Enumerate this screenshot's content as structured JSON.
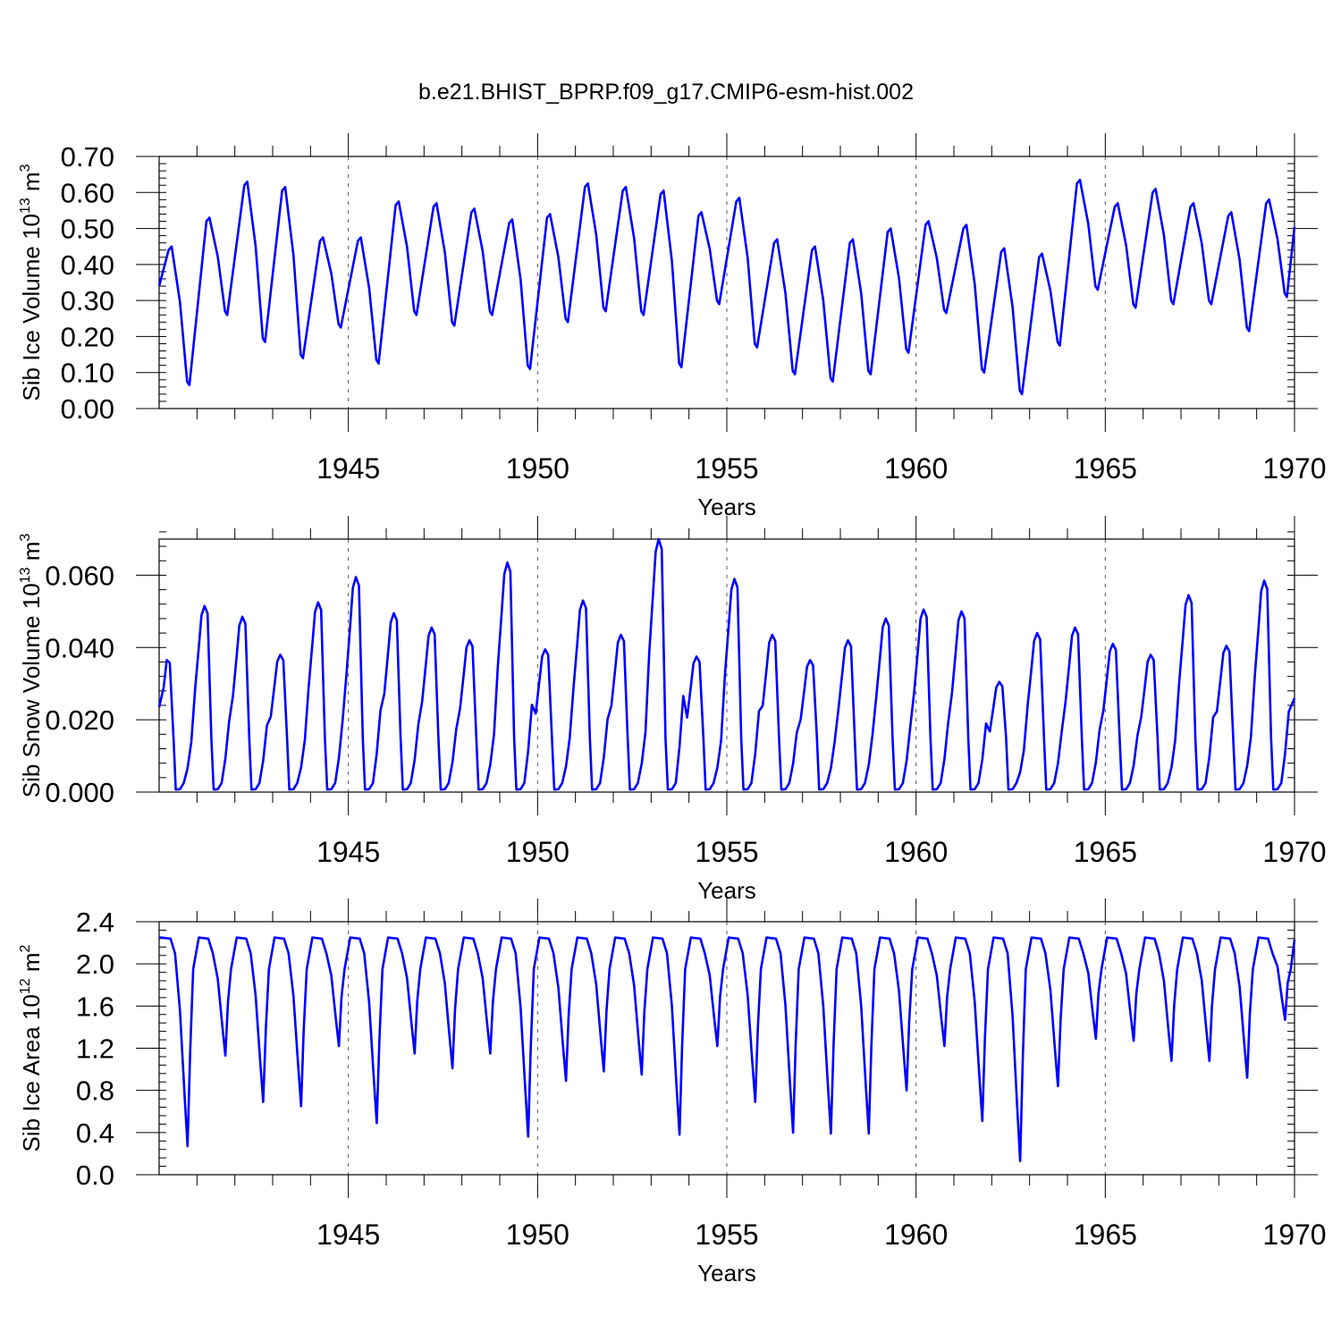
{
  "title": "b.e21.BHIST_BPRP.f09_g17.CMIP6-esm-hist.002",
  "line_color": "#0000ff",
  "chart_data": [
    {
      "type": "line",
      "title": "b.e21.BHIST_BPRP.f09_g17.CMIP6-esm-hist.002",
      "ylabel_main": "Sib Ice Volume 10",
      "ylabel_exp": "13",
      "ylabel_unit": " m",
      "ylabel_unit_exp": "3",
      "xlabel": "Years",
      "xlim": [
        1940.0,
        1970.0
      ],
      "ylim": [
        0.0,
        0.7
      ],
      "xticks": [
        1945,
        1950,
        1955,
        1960,
        1965,
        1970
      ],
      "xtick_labels": [
        "1945",
        "1950",
        "1955",
        "1960",
        "1965",
        "1970"
      ],
      "yticks": [
        0.0,
        0.1,
        0.2,
        0.3,
        0.4,
        0.5,
        0.6,
        0.7
      ],
      "ytick_labels": [
        "0.00",
        "0.10",
        "0.20",
        "0.30",
        "0.40",
        "0.50",
        "0.60",
        "0.70"
      ],
      "yminor_step": 0.02,
      "minima": [
        0.065,
        0.26,
        0.185,
        0.14,
        0.225,
        0.125,
        0.26,
        0.23,
        0.26,
        0.11,
        0.24,
        0.27,
        0.26,
        0.115,
        0.29,
        0.17,
        0.095,
        0.075,
        0.095,
        0.155,
        0.265,
        0.1,
        0.04,
        0.175,
        0.33,
        0.28,
        0.29,
        0.29,
        0.215,
        0.31
      ],
      "maxima": [
        0.45,
        0.53,
        0.63,
        0.615,
        0.475,
        0.475,
        0.575,
        0.57,
        0.555,
        0.525,
        0.54,
        0.625,
        0.615,
        0.605,
        0.545,
        0.585,
        0.47,
        0.45,
        0.47,
        0.5,
        0.52,
        0.51,
        0.445,
        0.43,
        0.635,
        0.57,
        0.61,
        0.57,
        0.545,
        0.58
      ],
      "start_value": 0.34,
      "end_value": 0.505,
      "shape": "ice"
    },
    {
      "type": "line",
      "ylabel_main": "Sib Snow Volume 10",
      "ylabel_exp": "13",
      "ylabel_unit": " m",
      "ylabel_unit_exp": "3",
      "xlabel": "Years",
      "xlim": [
        1940.0,
        1970.0
      ],
      "ylim": [
        0.0,
        0.07
      ],
      "xticks": [
        1945,
        1950,
        1955,
        1960,
        1965,
        1970
      ],
      "xtick_labels": [
        "1945",
        "1950",
        "1955",
        "1960",
        "1965",
        "1970"
      ],
      "yticks": [
        0.0,
        0.02,
        0.04,
        0.06
      ],
      "ytick_labels": [
        "0.000",
        "0.020",
        "0.040",
        "0.060"
      ],
      "yminor_step": 0.004,
      "maxima": [
        0.0365,
        0.0515,
        0.0485,
        0.038,
        0.0525,
        0.0595,
        0.0495,
        0.0455,
        0.042,
        0.0635,
        0.0395,
        0.053,
        0.0435,
        0.07,
        0.0375,
        0.059,
        0.0435,
        0.0365,
        0.042,
        0.048,
        0.0505,
        0.05,
        0.0305,
        0.044,
        0.0455,
        0.041,
        0.038,
        0.0545,
        0.0405,
        0.0585
      ],
      "start_value": 0.0235,
      "end_value": 0.026,
      "shape": "snow"
    },
    {
      "type": "line",
      "ylabel_main": "Sib Ice Area 10",
      "ylabel_exp": "12",
      "ylabel_unit": " m",
      "ylabel_unit_exp": "2",
      "xlabel": "Years",
      "xlim": [
        1940.0,
        1970.0
      ],
      "ylim": [
        0.0,
        2.4
      ],
      "xticks": [
        1945,
        1950,
        1955,
        1960,
        1965,
        1970
      ],
      "xtick_labels": [
        "1945",
        "1950",
        "1955",
        "1960",
        "1965",
        "1970"
      ],
      "yticks": [
        0.0,
        0.4,
        0.8,
        1.2,
        1.6,
        2.0,
        2.4
      ],
      "ytick_labels": [
        "0.0",
        "0.4",
        "0.8",
        "1.2",
        "1.6",
        "2.0",
        "2.4"
      ],
      "yminor_step": 0.08,
      "plateau": 2.25,
      "minima": [
        0.27,
        1.13,
        0.69,
        0.65,
        1.22,
        0.49,
        1.15,
        1.01,
        1.15,
        0.36,
        0.89,
        0.98,
        0.95,
        0.38,
        1.22,
        0.69,
        0.4,
        0.39,
        0.39,
        0.8,
        1.22,
        0.51,
        0.13,
        0.84,
        1.29,
        1.27,
        1.08,
        1.08,
        0.92,
        1.47
      ],
      "start_value": 2.25,
      "end_value": 2.23,
      "shape": "area"
    }
  ]
}
